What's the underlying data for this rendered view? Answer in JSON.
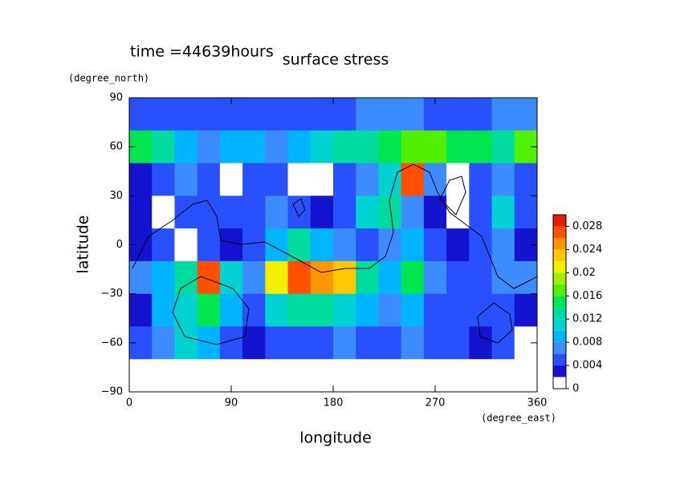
{
  "chart_data": {
    "type": "contour",
    "title": "surface stress",
    "annotation": "time =44639hours",
    "x_label": "longitude",
    "x_unit": "(degree_east)",
    "y_label": "latitude",
    "y_unit": "(degree_north)",
    "xlim": [
      0,
      360
    ],
    "ylim": [
      -90,
      90
    ],
    "xticks": [
      0,
      90,
      180,
      270,
      360
    ],
    "yticks": [
      {
        "value": -90,
        "label": "−90"
      },
      {
        "value": -60,
        "label": "−60"
      },
      {
        "value": -30,
        "label": "−30"
      },
      0,
      30,
      60,
      90
    ],
    "x": [
      10,
      30,
      50,
      70,
      90,
      110,
      130,
      150,
      170,
      190,
      210,
      230,
      250,
      270,
      290,
      310,
      330,
      350
    ],
    "y": [
      80,
      60,
      40,
      20,
      0,
      -20,
      -40,
      -60,
      -80
    ],
    "z": [
      [
        0.005,
        0.005,
        0.004,
        0.004,
        0.005,
        0.005,
        0.004,
        0.004,
        0.005,
        0.005,
        0.006,
        0.006,
        0.006,
        0.005,
        0.005,
        0.005,
        0.006,
        0.006
      ],
      [
        0.014,
        0.012,
        0.008,
        0.006,
        0.008,
        0.008,
        0.006,
        0.008,
        0.01,
        0.012,
        0.012,
        0.014,
        0.016,
        0.016,
        0.014,
        0.014,
        0.012,
        0.016
      ],
      [
        0.002,
        0.004,
        0.006,
        0.004,
        0.001,
        0.004,
        0.004,
        0.001,
        0.001,
        0.004,
        0.006,
        0.01,
        0.026,
        0.006,
        0.001,
        0.004,
        0.006,
        0.004
      ],
      [
        0.003,
        0.001,
        0.004,
        0.004,
        0.004,
        0.004,
        0.006,
        0.004,
        0.003,
        0.004,
        0.01,
        0.012,
        0.006,
        0.003,
        0.001,
        0.004,
        0.01,
        0.004
      ],
      [
        0.002,
        0.004,
        0.001,
        0.004,
        0.003,
        0.004,
        0.008,
        0.012,
        0.008,
        0.006,
        0.004,
        0.006,
        0.008,
        0.004,
        0.003,
        0.004,
        0.006,
        0.003
      ],
      [
        0.006,
        0.008,
        0.012,
        0.026,
        0.01,
        0.006,
        0.02,
        0.026,
        0.024,
        0.022,
        0.012,
        0.008,
        0.014,
        0.006,
        0.004,
        0.004,
        0.006,
        0.006
      ],
      [
        0.003,
        0.008,
        0.01,
        0.014,
        0.008,
        0.004,
        0.01,
        0.012,
        0.012,
        0.01,
        0.008,
        0.006,
        0.008,
        0.004,
        0.004,
        0.004,
        0.004,
        0.003
      ],
      [
        0.004,
        0.006,
        0.01,
        0.008,
        0.004,
        0.003,
        0.004,
        0.004,
        0.004,
        0.006,
        0.004,
        0.004,
        0.006,
        0.004,
        0.004,
        0.003,
        0.004,
        0.001
      ],
      [
        0,
        0,
        0,
        0,
        0,
        0,
        0,
        0,
        0,
        0,
        0,
        0,
        0,
        0,
        0,
        0,
        0,
        0
      ]
    ],
    "levels": [
      0,
      0.002,
      0.004,
      0.006,
      0.008,
      0.01,
      0.012,
      0.014,
      0.016,
      0.018,
      0.02,
      0.022,
      0.024,
      0.026,
      0.028,
      0.03
    ],
    "colors": [
      "#ffffff",
      "#1414d0",
      "#2850ff",
      "#3c8cff",
      "#00b4ff",
      "#00d2d2",
      "#00dca0",
      "#00e650",
      "#50f000",
      "#a0f000",
      "#f0f000",
      "#ffc800",
      "#ff9600",
      "#ff5000",
      "#e61e00"
    ],
    "colorbar_ticks": [
      0,
      0.004,
      0.008,
      0.012,
      0.016,
      0.02,
      0.024,
      0.028
    ]
  }
}
